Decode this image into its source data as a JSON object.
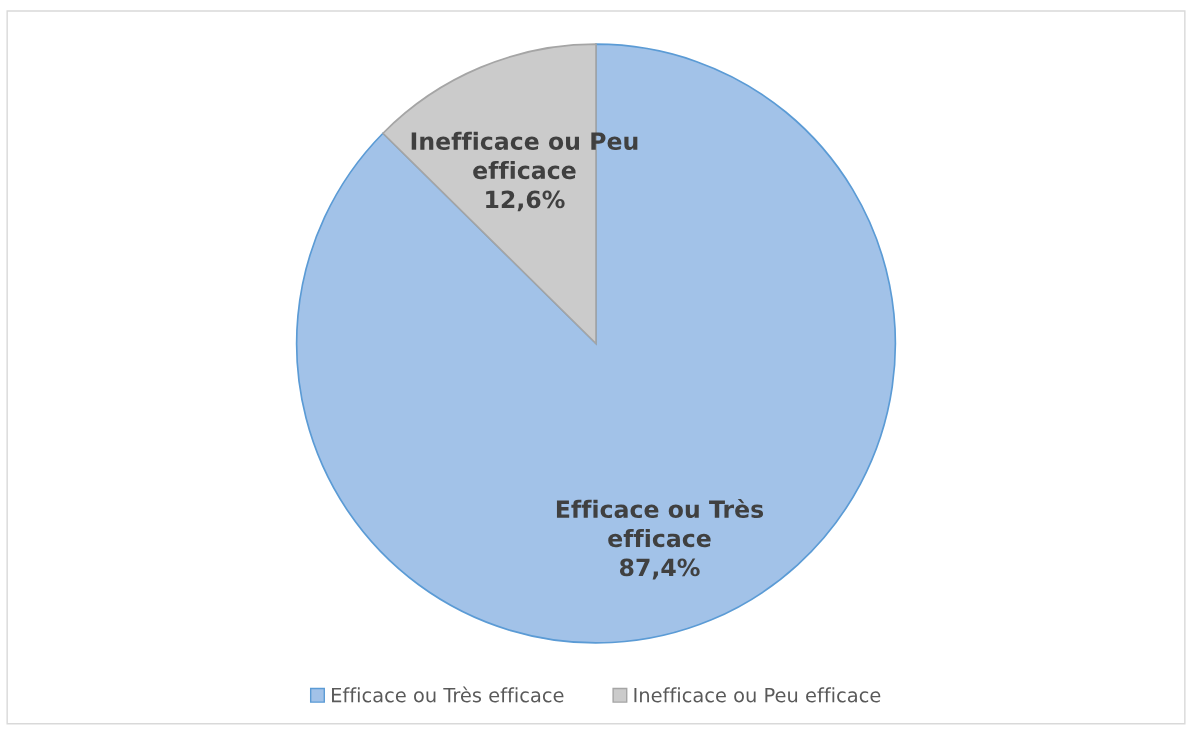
{
  "chart_data": {
    "type": "pie",
    "categories": [
      "Efficace ou Très efficace",
      "Inefficace ou Peu efficace"
    ],
    "values": [
      87.4,
      12.6
    ],
    "colors": [
      "#a2c2e8",
      "#cbcbcb"
    ],
    "value_labels": [
      "87,4%",
      "12,6%"
    ],
    "legend": "bottom"
  }
}
